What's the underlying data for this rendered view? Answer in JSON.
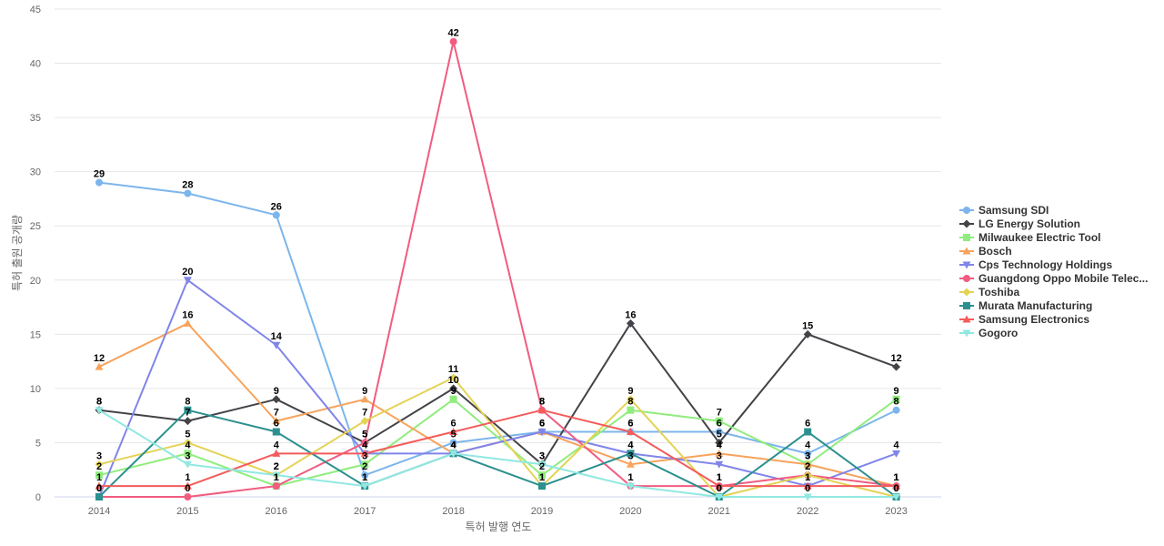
{
  "chart_data": {
    "type": "line",
    "xlabel": "특허 발행 연도",
    "ylabel": "특허 출원 공개량",
    "ylim": [
      0,
      45
    ],
    "yticks": [
      0,
      5,
      10,
      15,
      20,
      25,
      30,
      35,
      40,
      45
    ],
    "grid": true,
    "legend_position": "right",
    "categories": [
      "2014",
      "2015",
      "2016",
      "2017",
      "2018",
      "2019",
      "2020",
      "2021",
      "2022",
      "2023"
    ],
    "series": [
      {
        "name": "Samsung SDI",
        "color": "#7cb5ec",
        "marker": "circle",
        "values": [
          29,
          28,
          26,
          2,
          5,
          6,
          6,
          6,
          4,
          8
        ]
      },
      {
        "name": "LG Energy Solution",
        "color": "#434348",
        "marker": "diamond",
        "values": [
          8,
          7,
          9,
          5,
          10,
          3,
          16,
          5,
          15,
          12
        ]
      },
      {
        "name": "Milwaukee Electric Tool",
        "color": "#90ed7d",
        "marker": "square",
        "values": [
          2,
          4,
          1,
          3,
          9,
          2,
          8,
          7,
          3,
          9
        ]
      },
      {
        "name": "Bosch",
        "color": "#f7a35c",
        "marker": "triangle",
        "values": [
          12,
          16,
          7,
          9,
          4,
          6,
          3,
          4,
          3,
          1
        ]
      },
      {
        "name": "Cps Technology Holdings",
        "color": "#8085e9",
        "marker": "triangle-down",
        "values": [
          0,
          20,
          14,
          4,
          4,
          6,
          4,
          3,
          1,
          4
        ]
      },
      {
        "name": "Guangdong Oppo Mobile Telec...",
        "color": "#f15c80",
        "marker": "circle",
        "values": [
          0,
          0,
          1,
          5,
          42,
          8,
          1,
          1,
          2,
          1
        ]
      },
      {
        "name": "Toshiba",
        "color": "#e4d354",
        "marker": "diamond",
        "values": [
          3,
          5,
          2,
          7,
          11,
          1,
          9,
          0,
          2,
          0
        ]
      },
      {
        "name": "Murata Manufacturing",
        "color": "#2b908f",
        "marker": "square",
        "values": [
          0,
          8,
          6,
          1,
          4,
          1,
          4,
          0,
          6,
          0
        ]
      },
      {
        "name": "Samsung Electronics",
        "color": "#f45b5b",
        "marker": "triangle",
        "values": [
          1,
          1,
          4,
          4,
          6,
          8,
          6,
          1,
          1,
          1
        ]
      },
      {
        "name": "Gogoro",
        "color": "#91e8e1",
        "marker": "triangle-down",
        "values": [
          8,
          3,
          2,
          1,
          4,
          3,
          1,
          0,
          0,
          0
        ]
      }
    ]
  }
}
